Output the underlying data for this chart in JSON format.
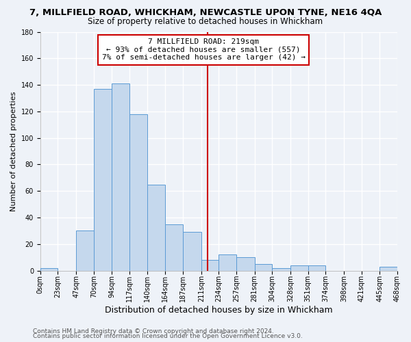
{
  "title": "7, MILLFIELD ROAD, WHICKHAM, NEWCASTLE UPON TYNE, NE16 4QA",
  "subtitle": "Size of property relative to detached houses in Whickham",
  "xlabel": "Distribution of detached houses by size in Whickham",
  "ylabel": "Number of detached properties",
  "bin_edges": [
    0,
    23,
    47,
    70,
    94,
    117,
    140,
    164,
    187,
    211,
    234,
    257,
    281,
    304,
    328,
    351,
    374,
    398,
    421,
    445,
    468
  ],
  "counts": [
    2,
    0,
    30,
    137,
    141,
    118,
    65,
    35,
    29,
    8,
    12,
    10,
    5,
    2,
    4,
    4,
    0,
    0,
    0,
    3
  ],
  "bar_color": "#c5d8ed",
  "bar_edge_color": "#5b9bd5",
  "vline_x": 219,
  "vline_color": "#cc0000",
  "annotation_text": "7 MILLFIELD ROAD: 219sqm\n← 93% of detached houses are smaller (557)\n7% of semi-detached houses are larger (42) →",
  "annotation_box_color": "#ffffff",
  "annotation_box_edge_color": "#cc0000",
  "ylim": [
    0,
    180
  ],
  "tick_labels": [
    "0sqm",
    "23sqm",
    "47sqm",
    "70sqm",
    "94sqm",
    "117sqm",
    "140sqm",
    "164sqm",
    "187sqm",
    "211sqm",
    "234sqm",
    "257sqm",
    "281sqm",
    "304sqm",
    "328sqm",
    "351sqm",
    "374sqm",
    "398sqm",
    "421sqm",
    "445sqm",
    "468sqm"
  ],
  "footer_line1": "Contains HM Land Registry data © Crown copyright and database right 2024.",
  "footer_line2": "Contains public sector information licensed under the Open Government Licence v3.0.",
  "bg_color": "#eef2f8",
  "grid_color": "#ffffff",
  "title_fontsize": 9.5,
  "subtitle_fontsize": 8.5,
  "xlabel_fontsize": 9,
  "ylabel_fontsize": 8,
  "tick_fontsize": 7,
  "annotation_fontsize": 8,
  "footer_fontsize": 6.5
}
